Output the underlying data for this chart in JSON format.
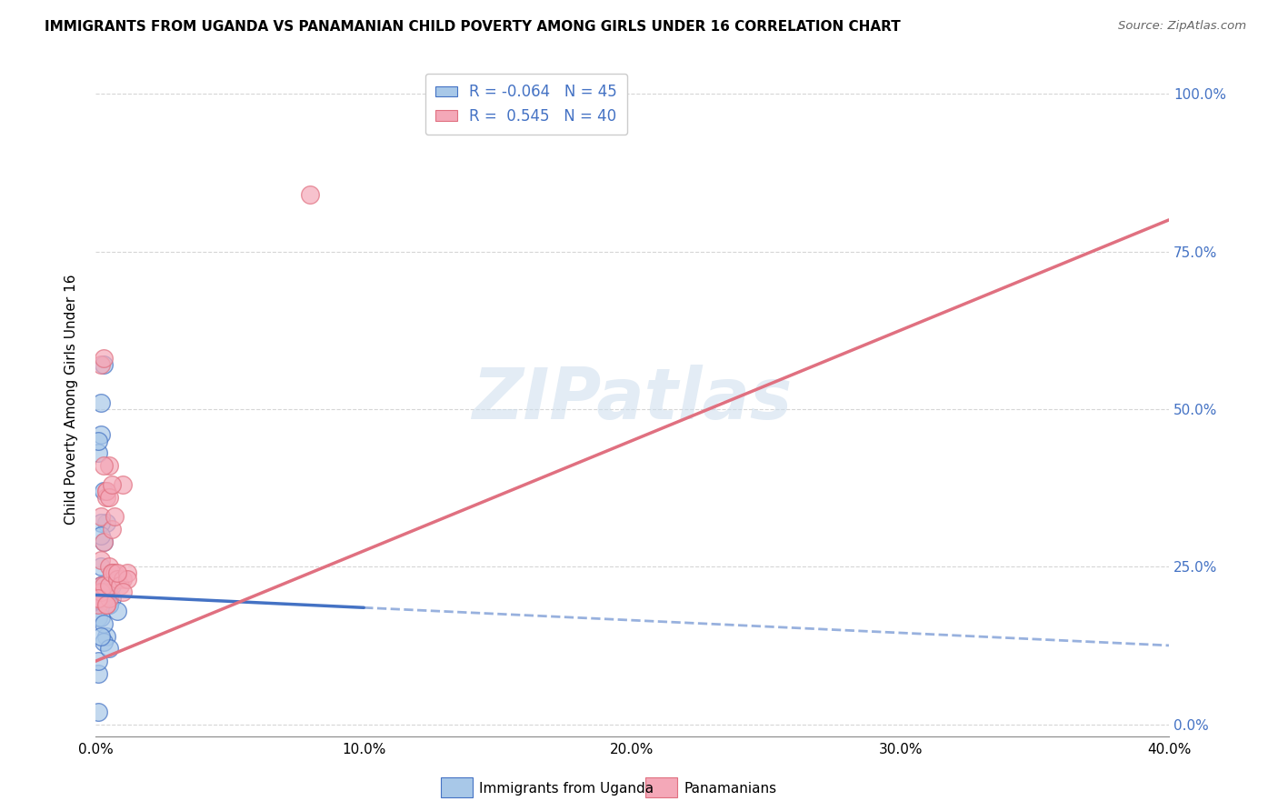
{
  "title": "IMMIGRANTS FROM UGANDA VS PANAMANIAN CHILD POVERTY AMONG GIRLS UNDER 16 CORRELATION CHART",
  "source": "Source: ZipAtlas.com",
  "ylabel": "Child Poverty Among Girls Under 16",
  "legend_label1": "Immigrants from Uganda",
  "legend_label2": "Panamanians",
  "R1": -0.064,
  "N1": 45,
  "R2": 0.545,
  "N2": 40,
  "color1": "#a8c8e8",
  "color2": "#f4a8b8",
  "line_color1": "#4472c4",
  "line_color2": "#e07080",
  "xlim": [
    0.0,
    0.4
  ],
  "ylim": [
    -0.02,
    1.05
  ],
  "xticks": [
    0.0,
    0.05,
    0.1,
    0.15,
    0.2,
    0.25,
    0.3,
    0.35,
    0.4
  ],
  "xtick_labels_show": [
    0.0,
    0.1,
    0.2,
    0.3,
    0.4
  ],
  "yticks": [
    0.0,
    0.25,
    0.5,
    0.75,
    1.0
  ],
  "ytick_labels_right": [
    "0.0%",
    "25.0%",
    "50.0%",
    "75.0%",
    "100.0%"
  ],
  "watermark": "ZIPatlas",
  "trendline1_x0": 0.0,
  "trendline1_y0": 0.205,
  "trendline1_x1": 0.4,
  "trendline1_y1": 0.125,
  "trendline1_solid_end": 0.1,
  "trendline2_x0": 0.0,
  "trendline2_y0": 0.1,
  "trendline2_x1": 0.4,
  "trendline2_y1": 0.8,
  "scatter1_x": [
    0.0015,
    0.002,
    0.003,
    0.001,
    0.004,
    0.005,
    0.002,
    0.001,
    0.003,
    0.006,
    0.001,
    0.002,
    0.001,
    0.003,
    0.004,
    0.002,
    0.001,
    0.005,
    0.003,
    0.002,
    0.001,
    0.004,
    0.002,
    0.003,
    0.001,
    0.006,
    0.002,
    0.003,
    0.004,
    0.001,
    0.002,
    0.001,
    0.003,
    0.002,
    0.004,
    0.001,
    0.003,
    0.002,
    0.001,
    0.005,
    0.002,
    0.001,
    0.008,
    0.003,
    0.002
  ],
  "scatter1_y": [
    0.2,
    0.22,
    0.19,
    0.21,
    0.2,
    0.19,
    0.2,
    0.19,
    0.21,
    0.2,
    0.19,
    0.2,
    0.21,
    0.19,
    0.2,
    0.2,
    0.21,
    0.19,
    0.2,
    0.22,
    0.2,
    0.21,
    0.46,
    0.29,
    0.43,
    0.22,
    0.51,
    0.57,
    0.32,
    0.45,
    0.32,
    0.17,
    0.37,
    0.3,
    0.14,
    0.08,
    0.13,
    0.17,
    0.1,
    0.12,
    0.25,
    0.02,
    0.18,
    0.16,
    0.14
  ],
  "scatter2_x": [
    0.001,
    0.002,
    0.003,
    0.001,
    0.004,
    0.005,
    0.002,
    0.003,
    0.001,
    0.004,
    0.002,
    0.003,
    0.005,
    0.004,
    0.002,
    0.003,
    0.006,
    0.004,
    0.007,
    0.003,
    0.002,
    0.008,
    0.005,
    0.006,
    0.004,
    0.01,
    0.008,
    0.007,
    0.005,
    0.006,
    0.005,
    0.006,
    0.008,
    0.01,
    0.009,
    0.012,
    0.012,
    0.01,
    0.008,
    0.08
  ],
  "scatter2_y": [
    0.2,
    0.22,
    0.21,
    0.19,
    0.19,
    0.2,
    0.21,
    0.22,
    0.2,
    0.19,
    0.57,
    0.58,
    0.41,
    0.37,
    0.33,
    0.29,
    0.31,
    0.36,
    0.33,
    0.41,
    0.26,
    0.23,
    0.25,
    0.24,
    0.37,
    0.38,
    0.23,
    0.24,
    0.36,
    0.38,
    0.22,
    0.24,
    0.23,
    0.23,
    0.22,
    0.24,
    0.23,
    0.21,
    0.24,
    0.84
  ]
}
